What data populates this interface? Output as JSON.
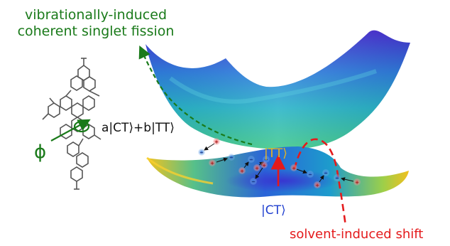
{
  "title": {
    "line1": "vibrationally-induced",
    "line2": "coherent singlet fission"
  },
  "labels": {
    "superposition": "a|CT⟩+b|TT⟩",
    "phi": "ϕ",
    "tt_state": "|TT⟩",
    "ct_state": "|CT⟩",
    "solvent_shift": "solvent-induced shift"
  },
  "colors": {
    "green": "#1a7a1a",
    "red": "#e41a1c",
    "blue": "#1f3fcf",
    "yellow": "#e6b422",
    "surface_top": "#3ba5d6",
    "surface_bottom": "#2fb59a"
  }
}
